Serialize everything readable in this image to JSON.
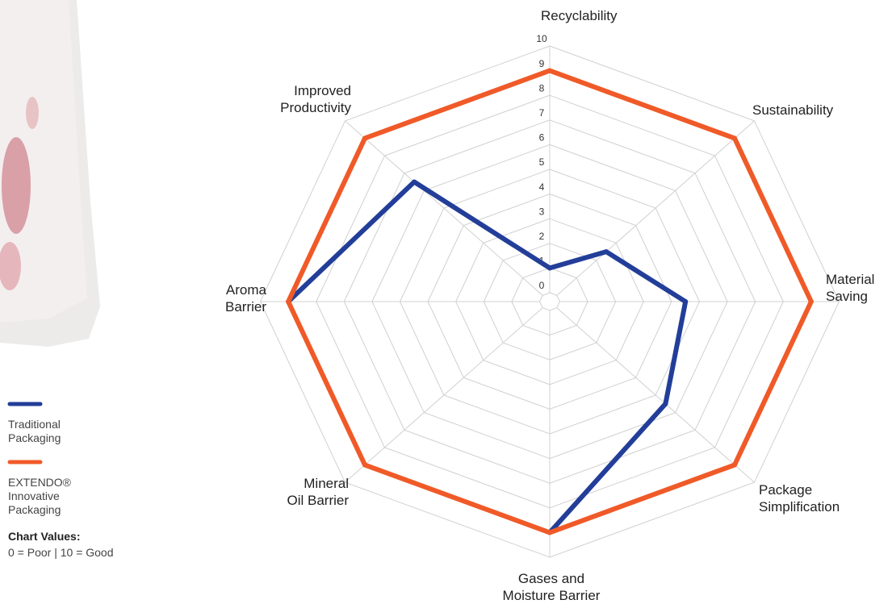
{
  "chart_data": {
    "type": "radar",
    "categories": [
      "Recyclability",
      "Sustainability",
      "Material\nSaving",
      "Package\nSimplification",
      "Gases and\nMoisture Barrier",
      "Mineral\nOil Barrier",
      "Aroma\nBarrier",
      "Improved\nProductivity"
    ],
    "series": [
      {
        "name": "Traditional\nPackaging",
        "color": "#233e99",
        "values": [
          1,
          2.5,
          4.5,
          5.5,
          9,
          null,
          9,
          6.5
        ]
      },
      {
        "name": "EXTENDO®\nInnovative\nPackaging",
        "color": "#f05a28",
        "values": [
          9,
          9,
          9,
          9,
          9,
          9,
          9,
          9
        ]
      }
    ],
    "rlim": [
      0,
      10
    ],
    "rticks": [
      0,
      1,
      2,
      3,
      4,
      5,
      6,
      7,
      8,
      9,
      10
    ],
    "grid": true,
    "annotations": [
      "Chart Values:",
      "0 = Poor | 10 = Good"
    ]
  }
}
